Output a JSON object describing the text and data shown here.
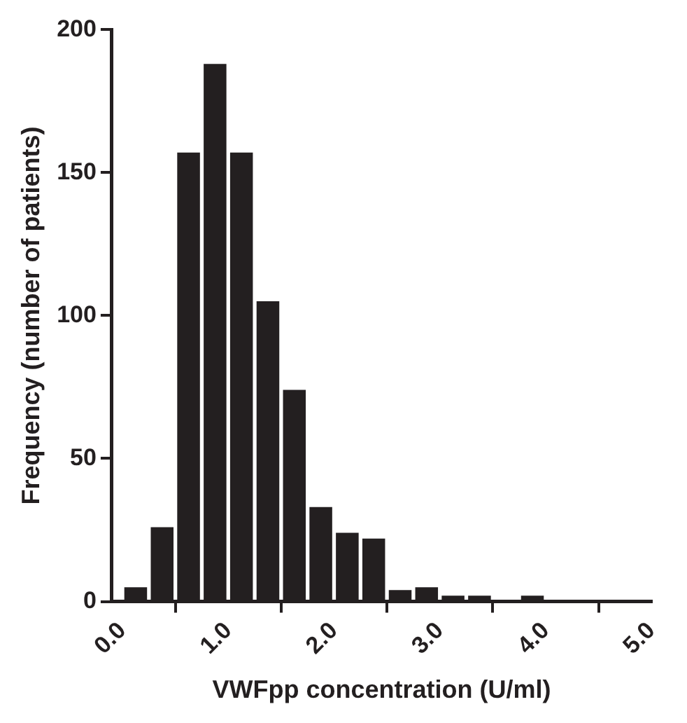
{
  "chart_data": {
    "type": "histogram",
    "xlabel": "VWFpp concentration (U/ml)",
    "ylabel": "Frequency (number of patients)",
    "bins": [
      0,
      0.25,
      0.5,
      0.75,
      1.0,
      1.25,
      1.5,
      1.75,
      2.0,
      2.25,
      2.5,
      2.75,
      3.0,
      3.25,
      3.5,
      3.75,
      4.0,
      4.25,
      4.5,
      4.75,
      5.0
    ],
    "values": [
      5,
      26,
      157,
      188,
      157,
      105,
      74,
      33,
      24,
      22,
      4,
      5,
      2,
      2,
      0,
      2,
      0,
      0,
      0,
      0
    ],
    "color": "#231f20",
    "xlim": [
      -0.1,
      5.0
    ],
    "xticks": [
      {
        "value": 0,
        "label": "0.0"
      },
      {
        "value": 1,
        "label": "1.0"
      },
      {
        "value": 2,
        "label": "2.0"
      },
      {
        "value": 3,
        "label": "3.0"
      },
      {
        "value": 4,
        "label": "4.0"
      },
      {
        "value": 5,
        "label": "5.0"
      }
    ],
    "ylim": [
      0,
      200
    ],
    "yticks": [
      0,
      50,
      100,
      150,
      200
    ],
    "grid": false,
    "legend": false
  }
}
